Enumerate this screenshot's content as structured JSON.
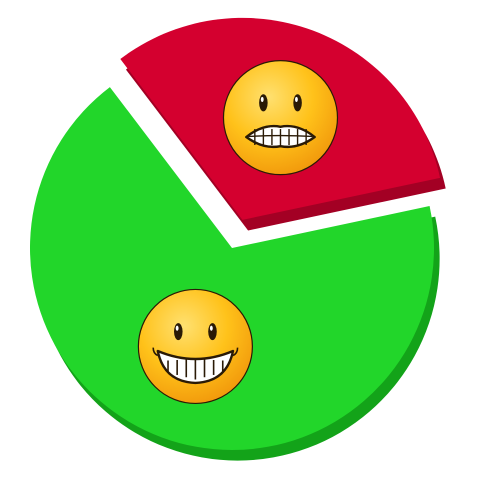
{
  "chart_data": {
    "type": "pie",
    "style": "3d-exploded",
    "legend": "none",
    "slices": [
      {
        "name": "",
        "value": 68,
        "color": "#22d62a",
        "side_color": "#13a319",
        "face": "smile",
        "exploded": false
      },
      {
        "name": "",
        "value": 32,
        "color": "#d4002f",
        "side_color": "#a30024",
        "face": "grimace",
        "exploded": true
      }
    ],
    "face_colors": {
      "fill": "#ffc21a",
      "highlight": "#ffe070",
      "shade": "#f29a0c",
      "outline": "#2a1a06",
      "teeth": "#ffffff"
    }
  }
}
